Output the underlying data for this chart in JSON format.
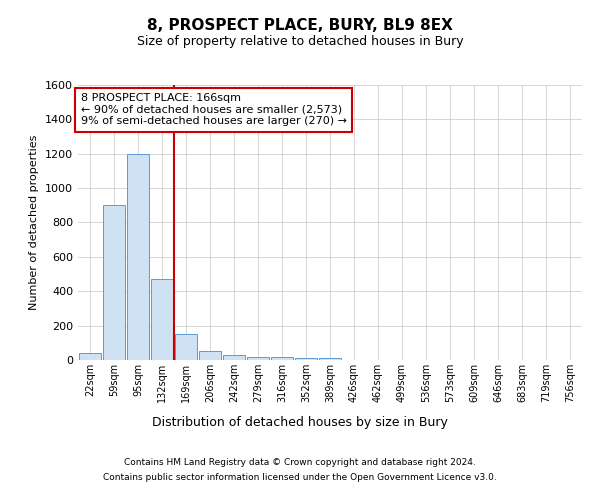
{
  "title": "8, PROSPECT PLACE, BURY, BL9 8EX",
  "subtitle": "Size of property relative to detached houses in Bury",
  "xlabel": "Distribution of detached houses by size in Bury",
  "ylabel": "Number of detached properties",
  "footer_line1": "Contains HM Land Registry data © Crown copyright and database right 2024.",
  "footer_line2": "Contains public sector information licensed under the Open Government Licence v3.0.",
  "bin_labels": [
    "22sqm",
    "59sqm",
    "95sqm",
    "132sqm",
    "169sqm",
    "206sqm",
    "242sqm",
    "279sqm",
    "316sqm",
    "352sqm",
    "389sqm",
    "426sqm",
    "462sqm",
    "499sqm",
    "536sqm",
    "573sqm",
    "609sqm",
    "646sqm",
    "683sqm",
    "719sqm",
    "756sqm"
  ],
  "bar_values": [
    40,
    900,
    1200,
    470,
    150,
    55,
    30,
    20,
    15,
    10,
    10,
    0,
    0,
    0,
    0,
    0,
    0,
    0,
    0,
    0,
    0
  ],
  "bar_color": "#cfe2f3",
  "bar_edge_color": "#5b9bd5",
  "grid_color": "#d0d0d0",
  "vline_x_pos": 3.5,
  "vline_color": "#cc0000",
  "annotation_line1": "8 PROSPECT PLACE: 166sqm",
  "annotation_line2": "← 90% of detached houses are smaller (2,573)",
  "annotation_line3": "9% of semi-detached houses are larger (270) →",
  "annotation_box_color": "#cc0000",
  "ylim": [
    0,
    1600
  ],
  "yticks": [
    0,
    200,
    400,
    600,
    800,
    1000,
    1200,
    1400,
    1600
  ],
  "background_color": "#ffffff",
  "title_fontsize": 11,
  "subtitle_fontsize": 9,
  "ylabel_fontsize": 8,
  "xlabel_fontsize": 9,
  "ytick_fontsize": 8,
  "xtick_fontsize": 7,
  "footer_fontsize": 6.5,
  "annotation_fontsize": 8
}
